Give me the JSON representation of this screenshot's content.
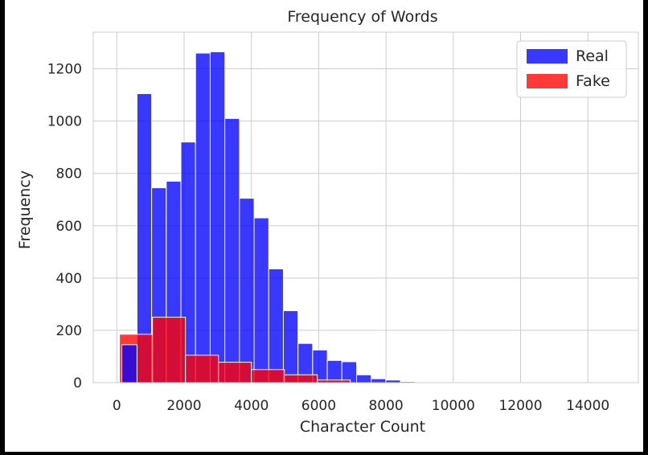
{
  "chart_data": {
    "type": "bar",
    "title": "Frequency of Words",
    "xlabel": "Character Count",
    "ylabel": "Frequency",
    "xlim": [
      -700,
      15500
    ],
    "ylim": [
      0,
      1340
    ],
    "xticks": [
      0,
      2000,
      4000,
      6000,
      8000,
      10000,
      12000,
      14000
    ],
    "yticks": [
      0,
      200,
      400,
      600,
      800,
      1000,
      1200
    ],
    "grid": true,
    "legend_position": "top-right",
    "series": [
      {
        "name": "Real",
        "color": "#0000ff",
        "opacity": 0.78,
        "bin_edges": [
          600,
          1035,
          1470,
          1905,
          2340,
          2775,
          3210,
          3645,
          4080,
          4515,
          4950,
          5385,
          5820,
          6255,
          6690,
          7125,
          7560,
          7995,
          8430,
          8865,
          9300,
          9735,
          10170,
          10605,
          11040,
          11475,
          11910,
          12345,
          12780,
          13215,
          13650,
          14085,
          14520,
          14955
        ],
        "counts": [
          1105,
          745,
          770,
          920,
          1260,
          1265,
          1010,
          705,
          630,
          435,
          275,
          150,
          125,
          85,
          80,
          30,
          15,
          10,
          4,
          3,
          2,
          2,
          1,
          1,
          1,
          1,
          1,
          1,
          1,
          1,
          1,
          1,
          1
        ]
      },
      {
        "name": "Fake",
        "color": "#ff0000",
        "opacity": 0.78,
        "bin_edges": [
          80,
          1060,
          2040,
          3020,
          4000,
          4980,
          5960,
          6940
        ],
        "counts": [
          185,
          250,
          105,
          78,
          50,
          30,
          10
        ]
      }
    ],
    "extra_bins": [
      {
        "series": "Real",
        "x0": 150,
        "x1": 600,
        "count": 145
      }
    ]
  }
}
